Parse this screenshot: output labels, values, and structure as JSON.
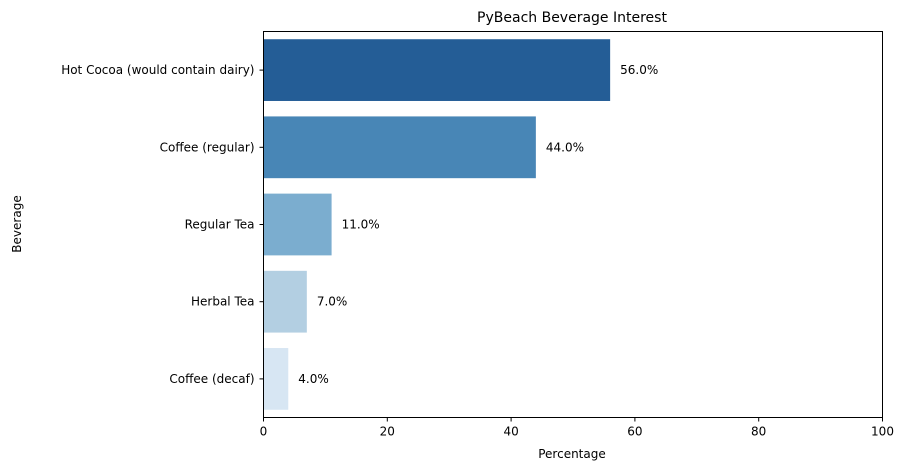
{
  "chart_data": {
    "type": "bar",
    "orientation": "horizontal",
    "title": "PyBeach Beverage Interest",
    "xlabel": "Percentage",
    "ylabel": "Beverage",
    "xlim": [
      0,
      100
    ],
    "xticks": [
      0,
      20,
      40,
      60,
      80,
      100
    ],
    "grid": false,
    "categories": [
      "Hot Cocoa (would contain dairy)",
      "Coffee (regular)",
      "Regular Tea",
      "Herbal Tea",
      "Coffee (decaf)"
    ],
    "values": [
      56.0,
      44.0,
      11.0,
      7.0,
      4.0
    ],
    "data_labels": [
      "56.0%",
      "44.0%",
      "11.0%",
      "7.0%",
      "4.0%"
    ],
    "colors": [
      "#245d96",
      "#4886b6",
      "#7badcf",
      "#b3cfe2",
      "#d7e6f3"
    ]
  }
}
